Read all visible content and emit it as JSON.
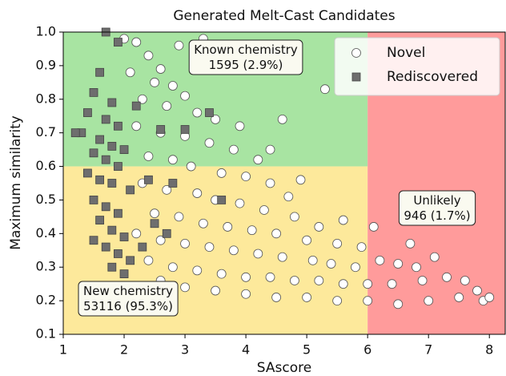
{
  "chart_data": {
    "type": "scatter",
    "title": "Generated Melt-Cast Candidates",
    "x_label": "SAscore",
    "y_label": "Maximum similarity",
    "xlim": [
      1,
      8.26
    ],
    "ylim": [
      0.1,
      1.0
    ],
    "xticks": [
      1,
      2,
      3,
      4,
      5,
      6,
      7,
      8
    ],
    "yticks": [
      0.1,
      0.2,
      0.3,
      0.4,
      0.5,
      0.6,
      0.7,
      0.8,
      0.9,
      {
        "value": 1,
        "label": "1.0"
      }
    ],
    "grid": false,
    "legend": "upper right",
    "regions": [
      {
        "xlim": [
          1,
          6
        ],
        "ylim": [
          0.6,
          1.0
        ],
        "color": "#a8e4a2"
      },
      {
        "xlim": [
          1,
          6
        ],
        "ylim": [
          0.1,
          0.6
        ],
        "color": "#fde99b"
      },
      {
        "xlim": [
          6,
          8.26
        ],
        "ylim": [
          0.1,
          1.0
        ],
        "color": "#ff9b9b"
      }
    ],
    "annotations": [
      {
        "lines": [
          "Known chemistry",
          "1595 (2.9%)"
        ]
      },
      {
        "lines": [
          "Unlikely",
          "946 (1.7%)"
        ]
      },
      {
        "lines": [
          "New chemistry",
          "53116 (95.3%)"
        ]
      }
    ],
    "series": [
      {
        "name": "Novel",
        "color": "#ffffff",
        "marker": "circle",
        "x": [
          2.0,
          2.2,
          2.4,
          2.6,
          2.1,
          2.5,
          2.8,
          3.0,
          2.3,
          2.7,
          3.2,
          3.5,
          3.9,
          2.2,
          2.6,
          3.0,
          3.4,
          3.8,
          4.2,
          2.4,
          2.8,
          3.1,
          3.6,
          4.0,
          4.4,
          4.7,
          2.3,
          2.7,
          3.2,
          3.5,
          3.9,
          4.3,
          4.8,
          5.2,
          2.5,
          2.9,
          3.3,
          3.7,
          4.1,
          4.5,
          5.0,
          5.5,
          5.9,
          2.2,
          2.6,
          3.0,
          3.4,
          3.8,
          4.2,
          4.6,
          5.1,
          5.4,
          5.8,
          6.2,
          6.5,
          6.8,
          2.4,
          2.8,
          3.2,
          3.6,
          4.0,
          4.4,
          4.8,
          5.2,
          5.6,
          6.0,
          6.4,
          6.9,
          7.3,
          7.6,
          2.6,
          3.0,
          3.5,
          4.0,
          4.5,
          5.0,
          5.5,
          6.0,
          6.5,
          7.0,
          7.5,
          7.9,
          7.8,
          8.0,
          5.3,
          4.6,
          3.3,
          2.9,
          6.1,
          7.1,
          6.7,
          5.6,
          4.9,
          4.4
        ],
        "values": [
          0.98,
          0.97,
          0.93,
          0.89,
          0.88,
          0.85,
          0.84,
          0.81,
          0.8,
          0.78,
          0.76,
          0.74,
          0.72,
          0.72,
          0.7,
          0.69,
          0.67,
          0.65,
          0.62,
          0.63,
          0.62,
          0.6,
          0.58,
          0.57,
          0.55,
          0.51,
          0.55,
          0.53,
          0.52,
          0.5,
          0.49,
          0.47,
          0.45,
          0.42,
          0.46,
          0.45,
          0.43,
          0.42,
          0.41,
          0.4,
          0.38,
          0.37,
          0.36,
          0.4,
          0.38,
          0.37,
          0.36,
          0.35,
          0.34,
          0.33,
          0.32,
          0.31,
          0.3,
          0.32,
          0.31,
          0.3,
          0.32,
          0.3,
          0.29,
          0.28,
          0.27,
          0.27,
          0.26,
          0.26,
          0.25,
          0.25,
          0.25,
          0.26,
          0.27,
          0.26,
          0.26,
          0.24,
          0.23,
          0.22,
          0.21,
          0.21,
          0.2,
          0.2,
          0.19,
          0.2,
          0.21,
          0.2,
          0.23,
          0.21,
          0.83,
          0.74,
          0.98,
          0.96,
          0.42,
          0.33,
          0.37,
          0.44,
          0.56,
          0.65
        ]
      },
      {
        "name": "Rediscovered",
        "color": "#6e6e6e",
        "marker": "square",
        "x": [
          1.7,
          1.9,
          1.6,
          1.5,
          1.8,
          1.4,
          1.7,
          1.9,
          1.3,
          1.6,
          1.8,
          2.0,
          1.5,
          1.7,
          1.9,
          1.4,
          1.6,
          1.8,
          2.1,
          1.5,
          1.7,
          1.9,
          1.6,
          1.8,
          2.0,
          1.5,
          1.7,
          1.9,
          2.1,
          1.8,
          2.0,
          1.9,
          2.3,
          2.6,
          2.4,
          3.0,
          3.6,
          2.8,
          2.5,
          2.7,
          3.4,
          2.3,
          2.2,
          1.2
        ],
        "values": [
          1.0,
          0.97,
          0.88,
          0.82,
          0.79,
          0.76,
          0.74,
          0.72,
          0.7,
          0.68,
          0.66,
          0.65,
          0.64,
          0.62,
          0.6,
          0.58,
          0.56,
          0.55,
          0.53,
          0.5,
          0.48,
          0.46,
          0.44,
          0.41,
          0.39,
          0.38,
          0.36,
          0.34,
          0.32,
          0.3,
          0.28,
          0.23,
          0.19,
          0.71,
          0.56,
          0.71,
          0.5,
          0.55,
          0.43,
          0.4,
          0.76,
          0.36,
          0.78,
          0.7
        ]
      }
    ]
  }
}
